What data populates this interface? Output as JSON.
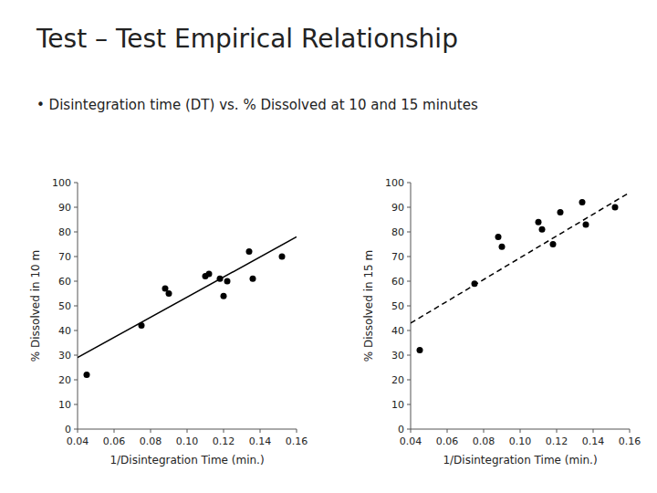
{
  "chart_data": [
    {
      "type": "scatter",
      "title": "Test – Test Empirical Relationship",
      "subtitle": "• Disintegration time (DT) vs. % Dissolved at 10 and 15 minutes",
      "x_label": "1/Disintegration Time (min.)",
      "y_label": "% Dissolved in 10 m",
      "xlim": [
        0.04,
        0.16
      ],
      "ylim": [
        0,
        100
      ],
      "xticks": [
        0.04,
        0.06,
        0.08,
        {
          "value": 0.1,
          "label": "0.10"
        },
        0.12,
        0.14,
        0.16
      ],
      "yticks": [
        0,
        10,
        20,
        30,
        40,
        50,
        60,
        70,
        80,
        90,
        100
      ],
      "series": [
        {
          "type": "scatter",
          "marker": "circle",
          "color": "#000000",
          "x": [
            0.045,
            0.075,
            0.088,
            0.09,
            0.11,
            0.112,
            0.118,
            0.12,
            0.122,
            0.134,
            0.136,
            0.152
          ],
          "values": [
            22,
            42,
            57,
            55,
            62,
            63,
            61,
            54,
            60,
            72,
            61,
            70
          ]
        },
        {
          "type": "line",
          "line_style": "solid",
          "color": "#000000",
          "x": [
            0.04,
            0.16
          ],
          "values": [
            29.0,
            78.0
          ]
        }
      ]
    },
    {
      "type": "scatter",
      "x_label": "1/Disintegration Time (min.)",
      "y_label": "% Dissolved in 15 m",
      "xlim": [
        0.04,
        0.16
      ],
      "ylim": [
        0,
        100
      ],
      "xticks": [
        0.04,
        0.06,
        0.08,
        {
          "value": 0.1,
          "label": "0.10"
        },
        0.12,
        0.14,
        0.16
      ],
      "yticks": [
        0,
        10,
        20,
        30,
        40,
        50,
        60,
        70,
        80,
        90,
        100
      ],
      "series": [
        {
          "type": "scatter",
          "marker": "circle",
          "color": "#000000",
          "x": [
            0.045,
            0.075,
            0.088,
            0.09,
            0.11,
            0.112,
            0.118,
            0.122,
            0.134,
            0.136,
            0.152
          ],
          "values": [
            32,
            59,
            78,
            74,
            84,
            81,
            75,
            88,
            92,
            83,
            90
          ]
        },
        {
          "type": "line",
          "line_style": "dashed",
          "color": "#000000",
          "x": [
            0.04,
            0.16
          ],
          "values": [
            43.0,
            96.0
          ]
        }
      ]
    }
  ]
}
